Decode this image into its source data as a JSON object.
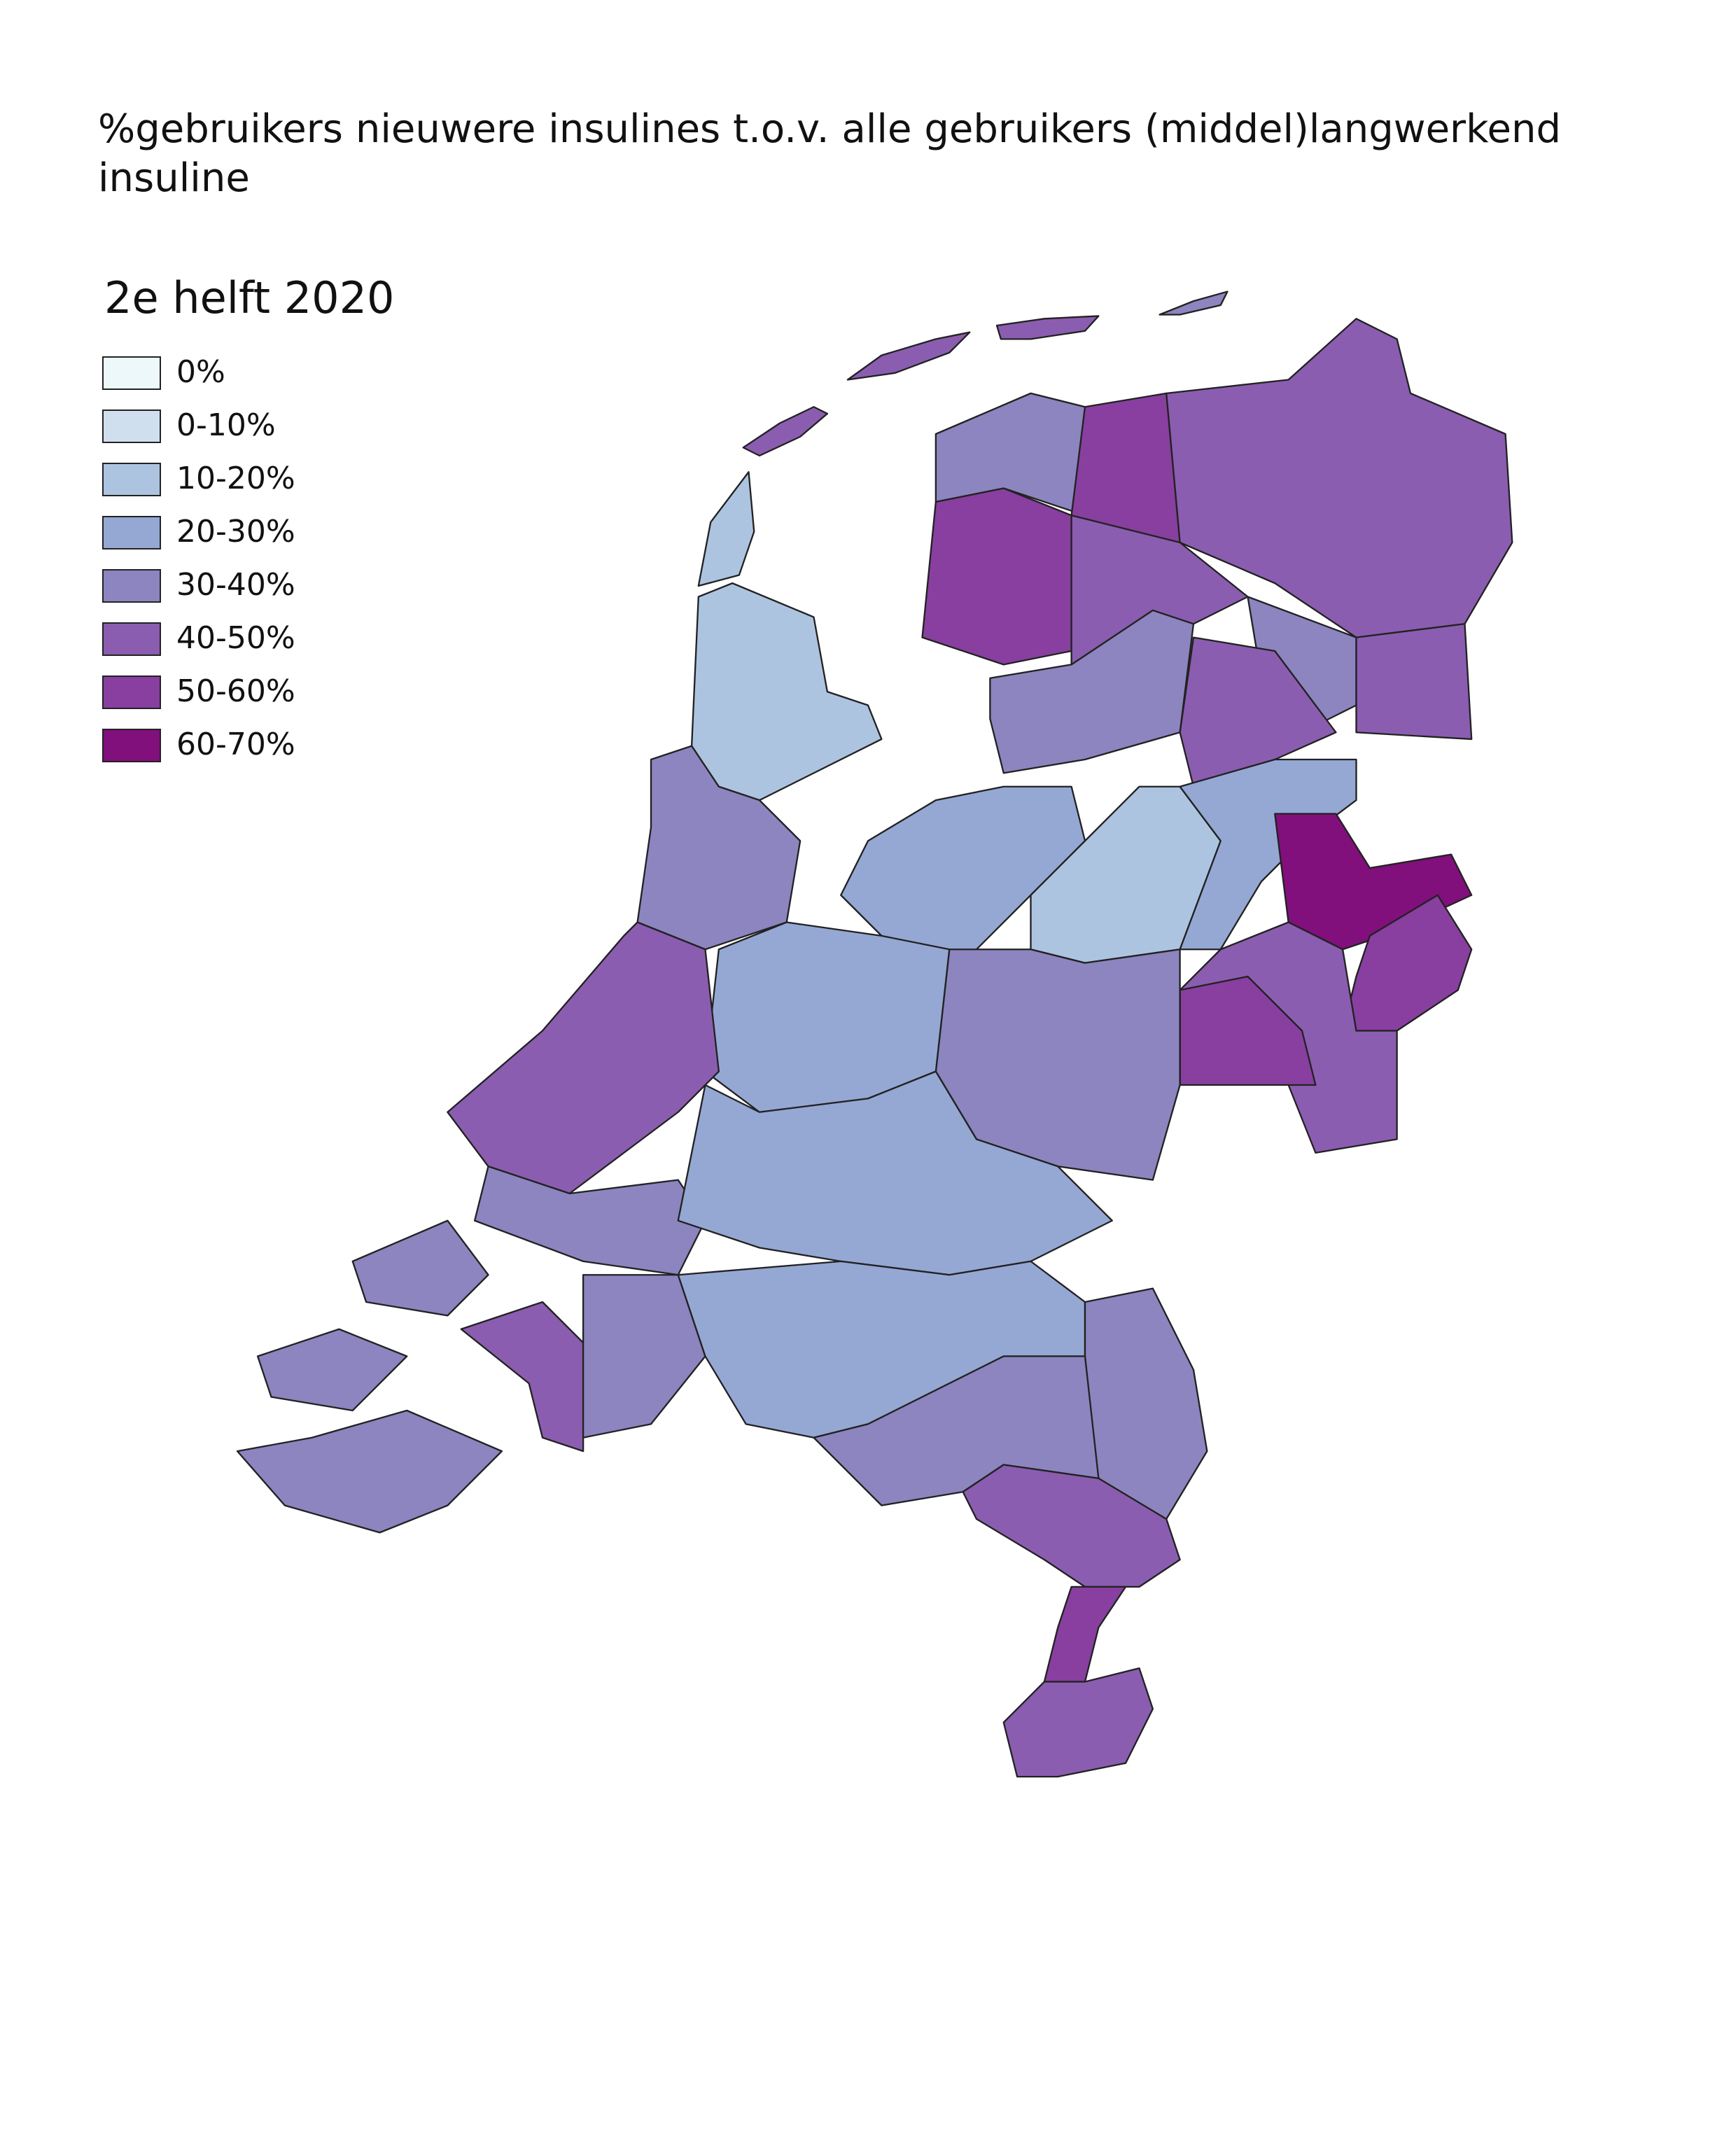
{
  "title": "%gebruikers nieuwere insulines t.o.v. alle gebruikers (middel)langwerkend insuline",
  "legend": {
    "title": "2e helft 2020",
    "items": [
      {
        "label": "0%",
        "color": "#edf8fb"
      },
      {
        "label": "0-10%",
        "color": "#cfdfee"
      },
      {
        "label": "10-20%",
        "color": "#adc4e1"
      },
      {
        "label": "20-30%",
        "color": "#95a8d4"
      },
      {
        "label": "30-40%",
        "color": "#8c85c0"
      },
      {
        "label": "40-50%",
        "color": "#8b5db0"
      },
      {
        "label": "50-60%",
        "color": "#883f9f"
      },
      {
        "label": "60-70%",
        "color": "#810f7c"
      }
    ]
  }
}
